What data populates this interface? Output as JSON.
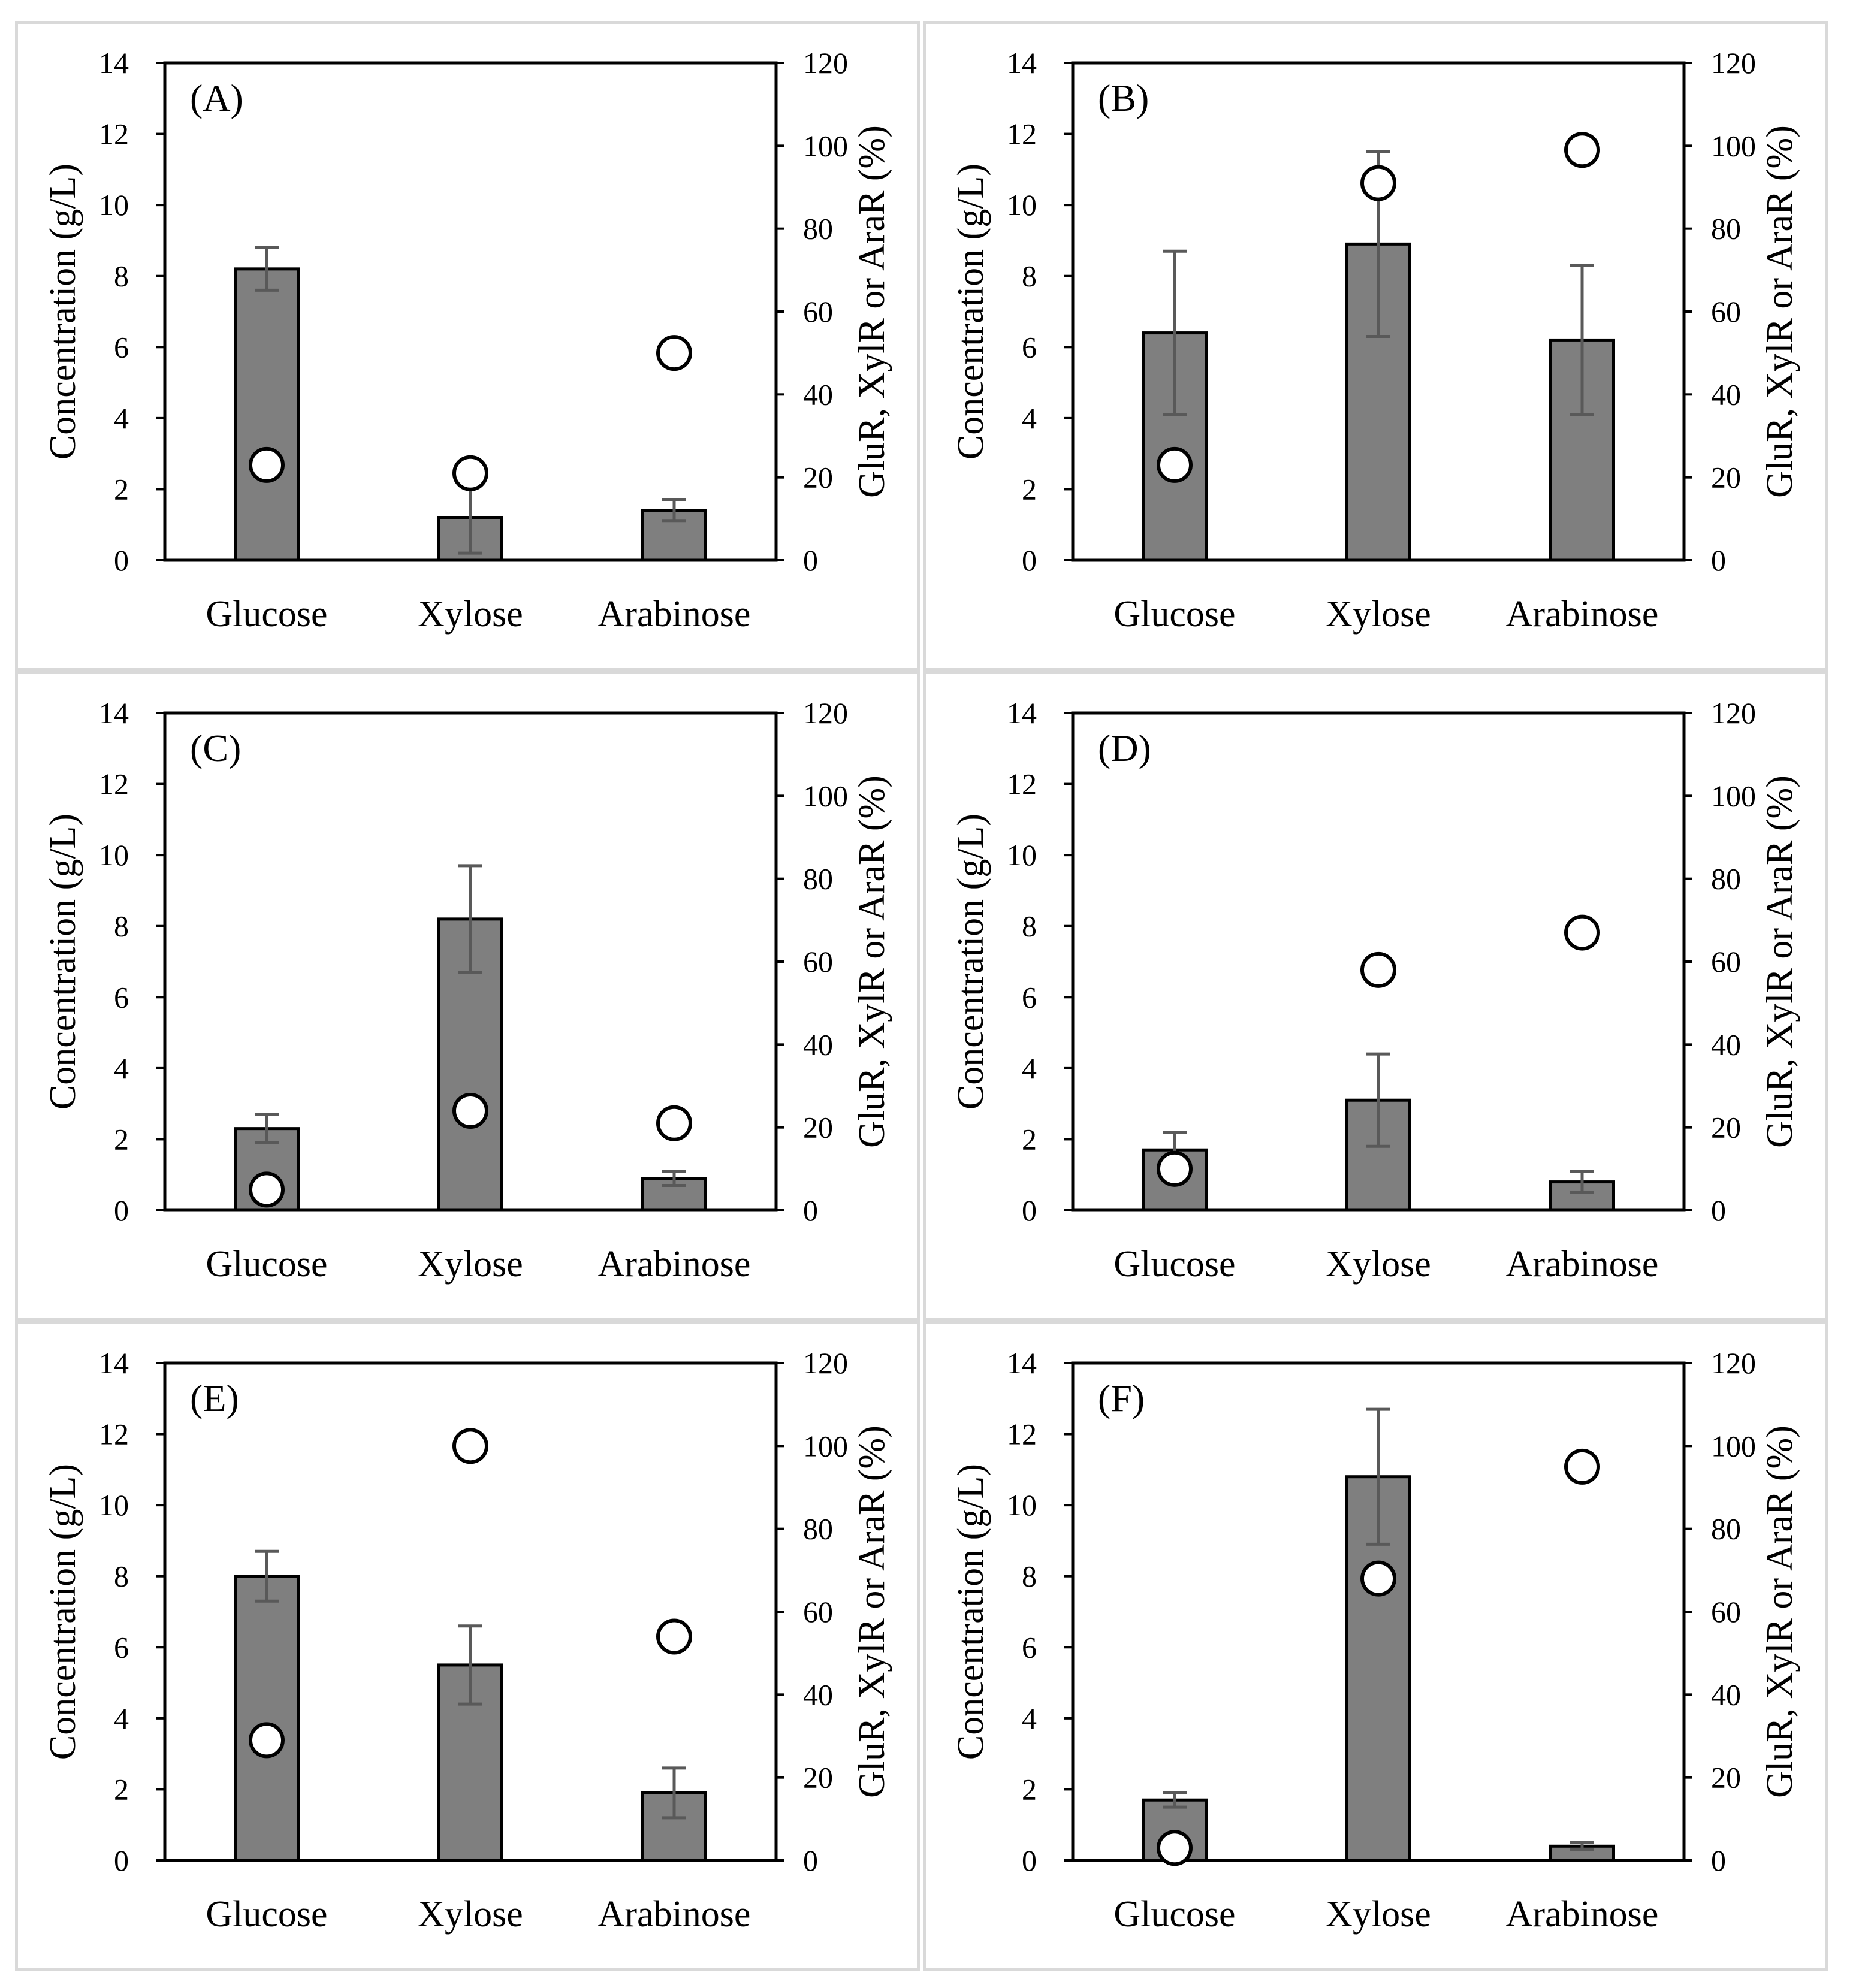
{
  "axes": {
    "left_label": "Concentration (g/L)",
    "right_label": "GluR, XylR or AraR (%)",
    "left_ticks": [
      "0",
      "2",
      "4",
      "6",
      "8",
      "10",
      "12",
      "14"
    ],
    "right_ticks": [
      "0",
      "20",
      "40",
      "60",
      "80",
      "100",
      "120"
    ]
  },
  "chart_data": [
    {
      "type": "bar",
      "panel": "(A)",
      "categories": [
        "Glucose",
        "Xylose",
        "Arabinose"
      ],
      "series": [
        {
          "name": "Concentration (g/L)",
          "axis": "left",
          "values": [
            8.2,
            1.2,
            1.4
          ],
          "errors": [
            0.6,
            1.0,
            0.3
          ]
        },
        {
          "name": "GluR, XylR or AraR (%)",
          "axis": "right",
          "marker": "circle",
          "values": [
            23,
            21,
            50
          ]
        }
      ],
      "ylim": [
        0,
        14
      ],
      "y2lim": [
        0,
        120
      ]
    },
    {
      "type": "bar",
      "panel": "(B)",
      "categories": [
        "Glucose",
        "Xylose",
        "Arabinose"
      ],
      "series": [
        {
          "name": "Concentration (g/L)",
          "axis": "left",
          "values": [
            6.4,
            8.9,
            6.2
          ],
          "errors": [
            2.3,
            2.6,
            2.1
          ]
        },
        {
          "name": "GluR, XylR or AraR (%)",
          "axis": "right",
          "marker": "circle",
          "values": [
            23,
            91,
            99
          ]
        }
      ],
      "ylim": [
        0,
        14
      ],
      "y2lim": [
        0,
        120
      ]
    },
    {
      "type": "bar",
      "panel": "(C)",
      "categories": [
        "Glucose",
        "Xylose",
        "Arabinose"
      ],
      "series": [
        {
          "name": "Concentration (g/L)",
          "axis": "left",
          "values": [
            2.3,
            8.2,
            0.9
          ],
          "errors": [
            0.4,
            1.5,
            0.2
          ]
        },
        {
          "name": "GluR, XylR or AraR (%)",
          "axis": "right",
          "marker": "circle",
          "values": [
            5,
            24,
            21
          ]
        }
      ],
      "ylim": [
        0,
        14
      ],
      "y2lim": [
        0,
        120
      ]
    },
    {
      "type": "bar",
      "panel": "(D)",
      "categories": [
        "Glucose",
        "Xylose",
        "Arabinose"
      ],
      "series": [
        {
          "name": "Concentration (g/L)",
          "axis": "left",
          "values": [
            1.7,
            3.1,
            0.8
          ],
          "errors": [
            0.5,
            1.3,
            0.3
          ]
        },
        {
          "name": "GluR, XylR or AraR (%)",
          "axis": "right",
          "marker": "circle",
          "values": [
            10,
            58,
            67
          ]
        }
      ],
      "ylim": [
        0,
        14
      ],
      "y2lim": [
        0,
        120
      ]
    },
    {
      "type": "bar",
      "panel": "(E)",
      "categories": [
        "Glucose",
        "Xylose",
        "Arabinose"
      ],
      "series": [
        {
          "name": "Concentration (g/L)",
          "axis": "left",
          "values": [
            8.0,
            5.5,
            1.9
          ],
          "errors": [
            0.7,
            1.1,
            0.7
          ]
        },
        {
          "name": "GluR, XylR or AraR (%)",
          "axis": "right",
          "marker": "circle",
          "values": [
            29,
            100,
            54
          ]
        }
      ],
      "ylim": [
        0,
        14
      ],
      "y2lim": [
        0,
        120
      ]
    },
    {
      "type": "bar",
      "panel": "(F)",
      "categories": [
        "Glucose",
        "Xylose",
        "Arabinose"
      ],
      "series": [
        {
          "name": "Concentration (g/L)",
          "axis": "left",
          "values": [
            1.7,
            10.8,
            0.4
          ],
          "errors": [
            0.2,
            1.9,
            0.1
          ]
        },
        {
          "name": "GluR, XylR or AraR (%)",
          "axis": "right",
          "marker": "circle",
          "values": [
            3,
            68,
            95
          ]
        }
      ],
      "ylim": [
        0,
        14
      ],
      "y2lim": [
        0,
        120
      ]
    }
  ]
}
